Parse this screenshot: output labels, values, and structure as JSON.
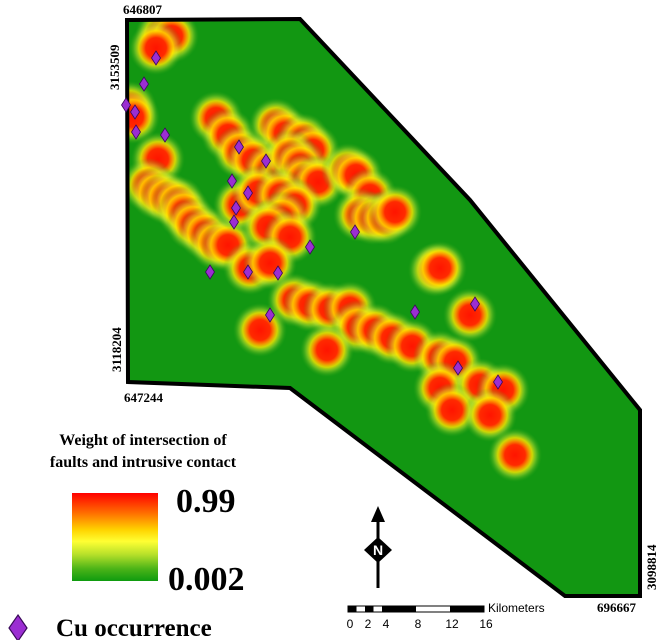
{
  "coordinates": {
    "top_left_x": "646807",
    "top_left_y": "3153509",
    "bottom_left_x": "647244",
    "bottom_left_y": "3118204",
    "bottom_right_x": "696667",
    "bottom_right_y": "3098814"
  },
  "legend": {
    "title_line1": "Weight of intersection of",
    "title_line2": "faults and intrusive contact",
    "max_value": "0.99",
    "min_value": "0.002",
    "gradient_colors": [
      "#ff0000",
      "#ff6a00",
      "#ffd400",
      "#ffff33",
      "#b6e02a",
      "#4cb418",
      "#0f9b0f"
    ],
    "occurrence_label": "Cu occurrence",
    "occurrence_color": "#9b2ed2"
  },
  "map": {
    "background_color": "#129712",
    "hotspot_color": "#ff1a00",
    "hotspots": [
      [
        162,
        35
      ],
      [
        172,
        36
      ],
      [
        156,
        48
      ],
      [
        130,
        108
      ],
      [
        133,
        117
      ],
      [
        216,
        118
      ],
      [
        228,
        135
      ],
      [
        276,
        125
      ],
      [
        285,
        133
      ],
      [
        303,
        140
      ],
      [
        313,
        150
      ],
      [
        158,
        159
      ],
      [
        148,
        185
      ],
      [
        157,
        193
      ],
      [
        167,
        198
      ],
      [
        178,
        203
      ],
      [
        184,
        212
      ],
      [
        193,
        224
      ],
      [
        205,
        233
      ],
      [
        216,
        243
      ],
      [
        228,
        245
      ],
      [
        240,
        152
      ],
      [
        253,
        160
      ],
      [
        270,
        170
      ],
      [
        283,
        175
      ],
      [
        290,
        156
      ],
      [
        300,
        165
      ],
      [
        304,
        180
      ],
      [
        318,
        182
      ],
      [
        348,
        170
      ],
      [
        356,
        175
      ],
      [
        240,
        205
      ],
      [
        258,
        192
      ],
      [
        280,
        195
      ],
      [
        295,
        205
      ],
      [
        282,
        218
      ],
      [
        268,
        227
      ],
      [
        290,
        237
      ],
      [
        370,
        195
      ],
      [
        360,
        215
      ],
      [
        373,
        218
      ],
      [
        385,
        218
      ],
      [
        395,
        212
      ],
      [
        250,
        268
      ],
      [
        270,
        263
      ],
      [
        435,
        270
      ],
      [
        440,
        268
      ],
      [
        470,
        315
      ],
      [
        294,
        300
      ],
      [
        310,
        305
      ],
      [
        330,
        309
      ],
      [
        350,
        308
      ],
      [
        358,
        327
      ],
      [
        375,
        330
      ],
      [
        392,
        338
      ],
      [
        412,
        346
      ],
      [
        260,
        330
      ],
      [
        327,
        350
      ],
      [
        440,
        357
      ],
      [
        455,
        362
      ],
      [
        440,
        388
      ],
      [
        480,
        385
      ],
      [
        503,
        390
      ],
      [
        452,
        410
      ],
      [
        490,
        415
      ],
      [
        515,
        455
      ]
    ],
    "occurrences": [
      [
        156,
        58
      ],
      [
        144,
        84
      ],
      [
        126,
        105
      ],
      [
        135,
        112
      ],
      [
        136,
        132
      ],
      [
        165,
        135
      ],
      [
        239,
        147
      ],
      [
        266,
        161
      ],
      [
        232,
        181
      ],
      [
        248,
        193
      ],
      [
        236,
        208
      ],
      [
        234,
        222
      ],
      [
        355,
        232
      ],
      [
        310,
        247
      ],
      [
        210,
        272
      ],
      [
        248,
        272
      ],
      [
        278,
        273
      ],
      [
        270,
        315
      ],
      [
        415,
        312
      ],
      [
        475,
        304
      ],
      [
        458,
        368
      ],
      [
        498,
        382
      ]
    ]
  },
  "scale_bar": {
    "unit": "Kilometers",
    "ticks": [
      "0",
      "2",
      "4",
      "8",
      "12",
      "16"
    ]
  },
  "north_arrow": {
    "letter": "N"
  }
}
